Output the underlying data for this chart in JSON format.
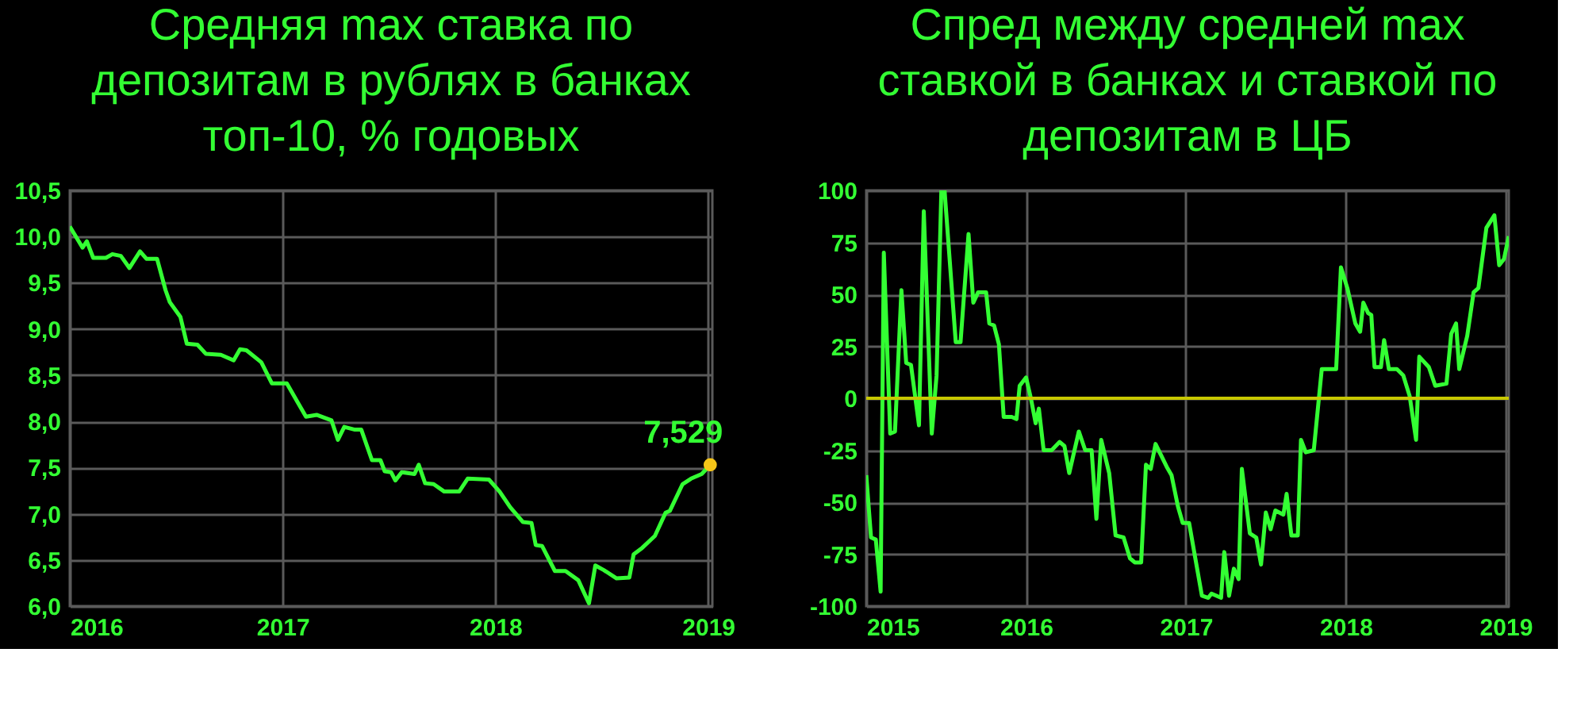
{
  "chart_data": [
    {
      "type": "line",
      "title": "Средняя max ставка по\nдепозитам в рублях в банках\nтоп-10, % годовых",
      "x": [
        2016.0,
        2016.06,
        2016.08,
        2016.11,
        2016.17,
        2016.2,
        2016.24,
        2016.28,
        2016.33,
        2016.36,
        2016.41,
        2016.45,
        2016.47,
        2016.52,
        2016.55,
        2016.6,
        2016.64,
        2016.71,
        2016.77,
        2016.8,
        2016.83,
        2016.9,
        2016.95,
        2017.02,
        2017.11,
        2017.16,
        2017.23,
        2017.26,
        2017.29,
        2017.34,
        2017.37,
        2017.42,
        2017.46,
        2017.48,
        2017.51,
        2017.53,
        2017.56,
        2017.62,
        2017.64,
        2017.67,
        2017.71,
        2017.76,
        2017.83,
        2017.87,
        2017.97,
        2018.02,
        2018.07,
        2018.13,
        2018.17,
        2018.19,
        2018.22,
        2018.28,
        2018.33,
        2018.39,
        2018.44,
        2018.47,
        2018.51,
        2018.57,
        2018.63,
        2018.65,
        2018.69,
        2018.75,
        2018.8,
        2018.82,
        2018.88,
        2018.92,
        2018.97,
        2019.01
      ],
      "series": [
        {
          "color": "#33ff33",
          "values": [
            10.11,
            9.88,
            9.95,
            9.77,
            9.77,
            9.81,
            9.79,
            9.66,
            9.84,
            9.76,
            9.76,
            9.42,
            9.29,
            9.13,
            8.84,
            8.83,
            8.73,
            8.72,
            8.66,
            8.78,
            8.77,
            8.64,
            8.41,
            8.41,
            8.05,
            8.07,
            8.01,
            7.8,
            7.94,
            7.91,
            7.91,
            7.58,
            7.58,
            7.46,
            7.45,
            7.36,
            7.45,
            7.43,
            7.53,
            7.33,
            7.32,
            7.24,
            7.24,
            7.38,
            7.37,
            7.24,
            7.07,
            6.91,
            6.9,
            6.66,
            6.65,
            6.38,
            6.38,
            6.28,
            6.03,
            6.44,
            6.39,
            6.3,
            6.31,
            6.56,
            6.63,
            6.76,
            7.01,
            7.03,
            7.32,
            7.38,
            7.43,
            7.529
          ]
        }
      ],
      "xlim": [
        2016,
        2019.02
      ],
      "xticks": [
        2016,
        2017,
        2018,
        2019
      ],
      "ylim": [
        6,
        10.5
      ],
      "yticks": [
        {
          "value": 6,
          "label": "6,0"
        },
        {
          "value": 6.5,
          "label": "6,5"
        },
        {
          "value": 7,
          "label": "7,0"
        },
        {
          "value": 7.5,
          "label": "7,5"
        },
        {
          "value": 8,
          "label": "8,0"
        },
        {
          "value": 8.5,
          "label": "8,5"
        },
        {
          "value": 9,
          "label": "9,0"
        },
        {
          "value": 9.5,
          "label": "9,5"
        },
        {
          "value": 10,
          "label": "10,0"
        },
        {
          "value": 10.5,
          "label": "10,5"
        }
      ],
      "grid": true,
      "annotations": [
        {
          "text": "7,529",
          "x": 2019.01,
          "y": 7.529
        }
      ]
    },
    {
      "type": "line",
      "title": "Спред между средней max\nставкой в банках и ставкой по\nдепозитам в ЦБ",
      "x": [
        2015.0,
        2015.03,
        2015.06,
        2015.09,
        2015.11,
        2015.15,
        2015.18,
        2015.22,
        2015.25,
        2015.28,
        2015.33,
        2015.36,
        2015.41,
        2015.44,
        2015.47,
        2015.49,
        2015.56,
        2015.59,
        2015.64,
        2015.67,
        2015.7,
        2015.75,
        2015.77,
        2015.8,
        2015.83,
        2015.86,
        2015.91,
        2015.94,
        2015.96,
        2016.0,
        2016.03,
        2016.06,
        2016.08,
        2016.11,
        2016.16,
        2016.21,
        2016.24,
        2016.27,
        2016.33,
        2016.37,
        2016.41,
        2016.44,
        2016.47,
        2016.52,
        2016.56,
        2016.61,
        2016.65,
        2016.68,
        2016.72,
        2016.75,
        2016.78,
        2016.81,
        2016.88,
        2016.91,
        2016.95,
        2016.98,
        2017.02,
        2017.1,
        2017.14,
        2017.16,
        2017.22,
        2017.24,
        2017.27,
        2017.3,
        2017.33,
        2017.35,
        2017.4,
        2017.44,
        2017.47,
        2017.5,
        2017.53,
        2017.56,
        2017.61,
        2017.63,
        2017.66,
        2017.7,
        2017.72,
        2017.75,
        2017.8,
        2017.85,
        2017.94,
        2017.97,
        2018.01,
        2018.06,
        2018.09,
        2018.11,
        2018.14,
        2018.16,
        2018.18,
        2018.22,
        2018.24,
        2018.27,
        2018.32,
        2018.36,
        2018.4,
        2018.44,
        2018.46,
        2018.52,
        2018.56,
        2018.63,
        2018.66,
        2018.69,
        2018.71,
        2018.76,
        2018.8,
        2018.83,
        2018.88,
        2018.93,
        2018.96,
        2018.99,
        2019.02
      ],
      "series": [
        {
          "color": "#33ff33",
          "values": [
            -37,
            -67,
            -68,
            -93,
            70,
            -17,
            -16,
            52,
            17,
            16,
            -13,
            90,
            -17,
            11,
            100,
            100,
            27,
            27,
            79,
            46,
            51,
            51,
            36,
            35,
            26,
            -9,
            -9,
            -10,
            6,
            10,
            0,
            -12,
            -5,
            -25,
            -25,
            -21,
            -23,
            -36,
            -16,
            -25,
            -25,
            -58,
            -20,
            -36,
            -66,
            -67,
            -77,
            -79,
            -79,
            -32,
            -34,
            -22,
            -33,
            -37,
            -52,
            -60,
            -60,
            -95,
            -96,
            -94,
            -96,
            -74,
            -95,
            -82,
            -87,
            -34,
            -65,
            -67,
            -80,
            -55,
            -63,
            -54,
            -56,
            -46,
            -66,
            -66,
            -20,
            -26,
            -25,
            14,
            14,
            63,
            53,
            36,
            32,
            46,
            41,
            40,
            15,
            15,
            28,
            14,
            14,
            11,
            1,
            -20,
            20,
            15,
            6,
            7,
            31,
            36,
            14,
            30,
            51,
            53,
            82,
            88,
            64,
            67,
            78
          ]
        }
      ],
      "xlim": [
        2015,
        2019.02
      ],
      "xticks": [
        2015,
        2016,
        2017,
        2018,
        2019
      ],
      "ylim": [
        -100,
        100
      ],
      "yticks": [
        -100,
        -75,
        -50,
        -25,
        0,
        25,
        50,
        75,
        100
      ],
      "grid": true,
      "ref_lines": [
        {
          "axis": "y",
          "value": 0,
          "color": "#c8c800"
        }
      ]
    }
  ]
}
